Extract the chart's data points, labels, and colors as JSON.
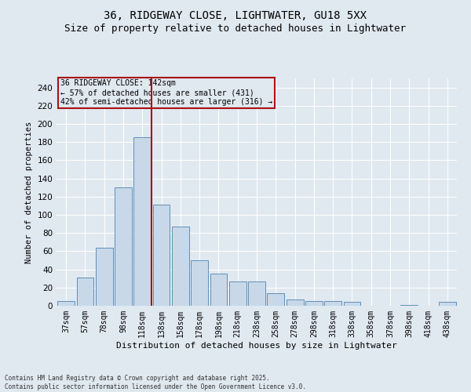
{
  "title1": "36, RIDGEWAY CLOSE, LIGHTWATER, GU18 5XX",
  "title2": "Size of property relative to detached houses in Lightwater",
  "xlabel": "Distribution of detached houses by size in Lightwater",
  "ylabel": "Number of detached properties",
  "bins": [
    "37sqm",
    "57sqm",
    "78sqm",
    "98sqm",
    "118sqm",
    "138sqm",
    "158sqm",
    "178sqm",
    "198sqm",
    "218sqm",
    "238sqm",
    "258sqm",
    "278sqm",
    "298sqm",
    "318sqm",
    "338sqm",
    "358sqm",
    "378sqm",
    "398sqm",
    "418sqm",
    "438sqm"
  ],
  "values": [
    5,
    31,
    64,
    130,
    185,
    111,
    87,
    50,
    35,
    27,
    27,
    14,
    7,
    5,
    5,
    4,
    0,
    0,
    1,
    0,
    4
  ],
  "bar_color": "#c8d8e8",
  "bar_edge_color": "#6090b8",
  "vline_color": "#aa1111",
  "ylim": [
    0,
    250
  ],
  "yticks": [
    0,
    20,
    40,
    60,
    80,
    100,
    120,
    140,
    160,
    180,
    200,
    220,
    240
  ],
  "annotation_title": "36 RIDGEWAY CLOSE: 142sqm",
  "annotation_line1": "← 57% of detached houses are smaller (431)",
  "annotation_line2": "42% of semi-detached houses are larger (316) →",
  "annotation_box_color": "#aa1111",
  "footer_line1": "Contains HM Land Registry data © Crown copyright and database right 2025.",
  "footer_line2": "Contains public sector information licensed under the Open Government Licence v3.0.",
  "background_color": "#e0e8f0",
  "plot_bg_color": "#e0e8f0",
  "grid_color": "#ffffff",
  "title_fontsize": 10,
  "subtitle_fontsize": 9
}
